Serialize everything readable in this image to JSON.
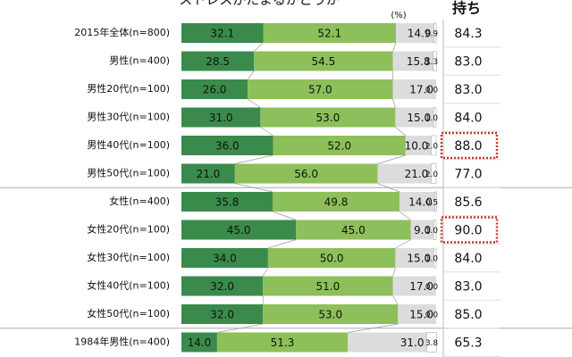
{
  "chart_data": {
    "type": "bar",
    "orientation": "horizontal",
    "stacked": true,
    "title": "ストレスがたまるかどうか",
    "unit_label": "(%)",
    "column_header": "持ち",
    "xlim": [
      0,
      100
    ],
    "categories": [
      "2015年全体(n=800)",
      "男性(n=400)",
      "男性20代(n=100)",
      "男性30代(n=100)",
      "男性40代(n=100)",
      "男性50代(n=100)",
      "女性(n=400)",
      "女性20代(n=100)",
      "女性30代(n=100)",
      "女性40代(n=100)",
      "女性50代(n=100)",
      "1984年男性(n=400)"
    ],
    "series": [
      {
        "color": "#3a8a4c",
        "values": [
          32.1,
          28.5,
          26.0,
          31.0,
          36.0,
          21.0,
          35.8,
          45.0,
          34.0,
          32.0,
          32.0,
          14.0
        ],
        "value_labels": [
          "32.1",
          "28.5",
          "26.0",
          "31.0",
          "36.0",
          "21.0",
          "35.8",
          "45.0",
          "34.0",
          "32.0",
          "32.0",
          "14.0"
        ]
      },
      {
        "color": "#8dbf5a",
        "values": [
          52.1,
          54.5,
          57.0,
          53.0,
          52.0,
          56.0,
          49.8,
          45.0,
          50.0,
          51.0,
          53.0,
          51.3
        ],
        "value_labels": [
          "52.1",
          "54.5",
          "57.0",
          "53.0",
          "52.0",
          "56.0",
          "49.8",
          "45.0",
          "50.0",
          "51.0",
          "53.0",
          "51.3"
        ]
      },
      {
        "color": "#dcdcdc",
        "values": [
          14.9,
          15.8,
          17.0,
          15.0,
          10.0,
          21.0,
          14.0,
          9.0,
          15.0,
          17.0,
          15.0,
          31.0
        ],
        "value_labels": [
          "14.9",
          "15.8",
          "17.0",
          "15.0",
          "10.0",
          "21.0",
          "14.0",
          "9.0",
          "15.0",
          "17.0",
          "15.0",
          "31.0"
        ]
      },
      {
        "color": "#ffffff",
        "values": [
          0.9,
          1.3,
          0.0,
          1.0,
          2.0,
          2.0,
          0.5,
          1.0,
          1.0,
          0.0,
          0.0,
          3.8
        ],
        "value_labels": [
          "0.9",
          "1.3",
          "0.0",
          "1.0",
          "2.0",
          "2.0",
          "0.5",
          "1.0",
          "1.0",
          "0.0",
          "0.0",
          "3.8"
        ]
      }
    ],
    "totals": {
      "values": [
        84.3,
        83.0,
        83.0,
        84.0,
        88.0,
        77.0,
        85.6,
        90.0,
        84.0,
        83.0,
        85.0,
        65.3
      ],
      "value_labels": [
        "84.3",
        "83.0",
        "83.0",
        "84.0",
        "88.0",
        "77.0",
        "85.6",
        "90.0",
        "84.0",
        "83.0",
        "85.0",
        "65.3"
      ],
      "highlighted": [
        false,
        false,
        false,
        false,
        true,
        false,
        false,
        true,
        false,
        false,
        false,
        false
      ]
    }
  }
}
